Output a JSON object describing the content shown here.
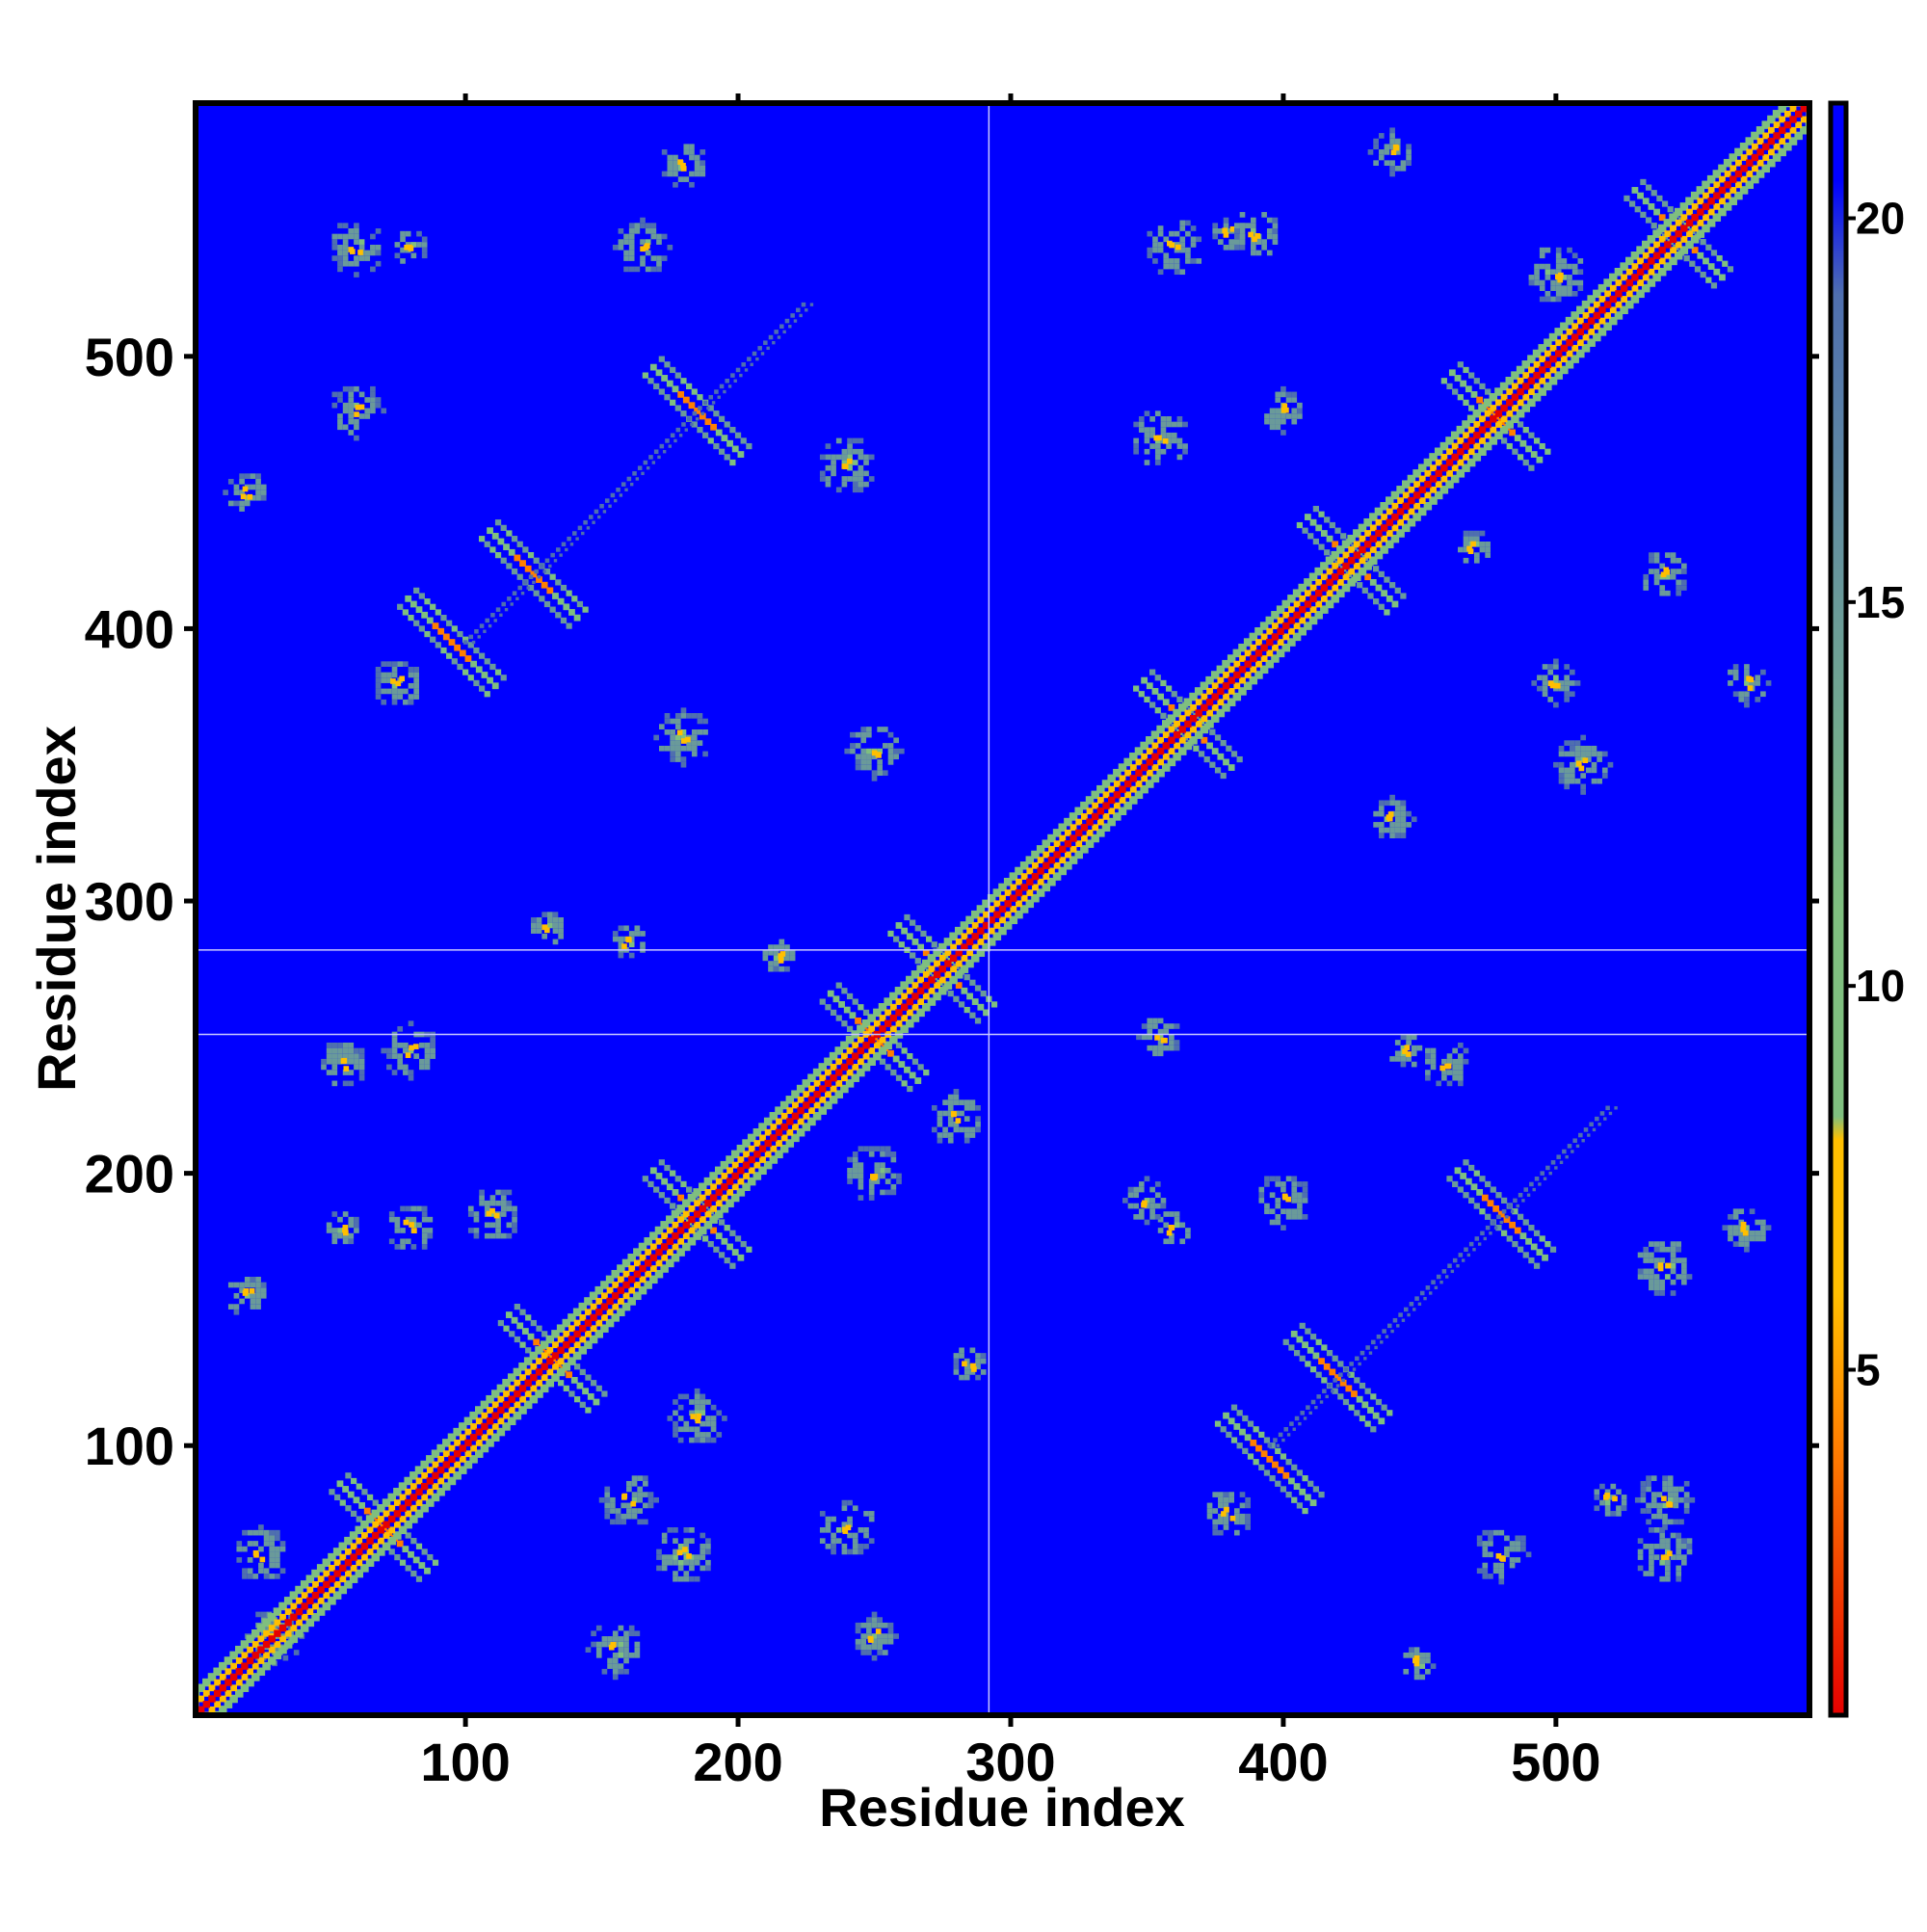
{
  "chart_data": {
    "type": "heatmap",
    "title": "",
    "xlabel": "Residue index",
    "ylabel": "Residue index",
    "xlim": [
      1,
      593
    ],
    "ylim": [
      1,
      593
    ],
    "x_ticks": [
      100,
      200,
      300,
      400,
      500
    ],
    "y_ticks": [
      100,
      200,
      300,
      400,
      500
    ],
    "colorbar": {
      "range": [
        0.5,
        21.5
      ],
      "ticks": [
        5,
        10,
        15,
        20
      ],
      "colors": [
        "#e60000",
        "#ff7f00",
        "#ffbf00",
        "#7fbf7f",
        "#6a9a9a",
        "#4f6faf",
        "#0000ff"
      ]
    },
    "background_color": "#0000ff",
    "series": [
      {
        "value": 3,
        "x": [
          [
            1,
            593
          ]
        ],
        "y": "diagonal"
      }
    ],
    "features": {
      "diagonal": {
        "from": 1,
        "to": 593
      },
      "antiparallel_crosses": [
        {
          "x": 70,
          "y": 70
        },
        {
          "x": 132,
          "y": 132
        },
        {
          "x": 185,
          "y": 185
        },
        {
          "x": 250,
          "y": 250
        },
        {
          "x": 275,
          "y": 275
        },
        {
          "x": 365,
          "y": 365
        },
        {
          "x": 425,
          "y": 425
        },
        {
          "x": 478,
          "y": 478
        },
        {
          "x": 545,
          "y": 545
        },
        {
          "x": 125,
          "y": 420
        },
        {
          "x": 185,
          "y": 480
        },
        {
          "x": 420,
          "y": 125
        },
        {
          "x": 480,
          "y": 185
        },
        {
          "x": 95,
          "y": 395
        },
        {
          "x": 395,
          "y": 95
        }
      ],
      "parallel_stripes": [
        {
          "x_from": 100,
          "y_from": 395,
          "x_to": 225,
          "y_to": 520
        },
        {
          "x_from": 395,
          "y_from": 100,
          "x_to": 520,
          "y_to": 225
        }
      ],
      "clusters": [
        {
          "x": 30,
          "y": 30
        },
        {
          "x": 55,
          "y": 180
        },
        {
          "x": 80,
          "y": 180
        },
        {
          "x": 110,
          "y": 185
        },
        {
          "x": 55,
          "y": 240
        },
        {
          "x": 80,
          "y": 245
        },
        {
          "x": 130,
          "y": 290
        },
        {
          "x": 160,
          "y": 285
        },
        {
          "x": 215,
          "y": 280
        },
        {
          "x": 250,
          "y": 200
        },
        {
          "x": 280,
          "y": 220
        },
        {
          "x": 285,
          "y": 130
        },
        {
          "x": 180,
          "y": 60
        },
        {
          "x": 240,
          "y": 70
        },
        {
          "x": 250,
          "y": 30
        },
        {
          "x": 155,
          "y": 25
        },
        {
          "x": 20,
          "y": 155
        },
        {
          "x": 25,
          "y": 60
        },
        {
          "x": 185,
          "y": 110
        },
        {
          "x": 160,
          "y": 80
        },
        {
          "x": 60,
          "y": 540
        },
        {
          "x": 80,
          "y": 540
        },
        {
          "x": 165,
          "y": 540
        },
        {
          "x": 180,
          "y": 570
        },
        {
          "x": 60,
          "y": 480
        },
        {
          "x": 240,
          "y": 460
        },
        {
          "x": 75,
          "y": 380
        },
        {
          "x": 180,
          "y": 360
        },
        {
          "x": 250,
          "y": 355
        },
        {
          "x": 20,
          "y": 450
        },
        {
          "x": 540,
          "y": 60
        },
        {
          "x": 540,
          "y": 80
        },
        {
          "x": 540,
          "y": 165
        },
        {
          "x": 570,
          "y": 180
        },
        {
          "x": 480,
          "y": 60
        },
        {
          "x": 460,
          "y": 240
        },
        {
          "x": 380,
          "y": 75
        },
        {
          "x": 360,
          "y": 180
        },
        {
          "x": 355,
          "y": 250
        },
        {
          "x": 450,
          "y": 20
        },
        {
          "x": 445,
          "y": 245
        },
        {
          "x": 360,
          "y": 540
        },
        {
          "x": 380,
          "y": 545
        },
        {
          "x": 440,
          "y": 575
        },
        {
          "x": 400,
          "y": 480
        },
        {
          "x": 355,
          "y": 470
        },
        {
          "x": 500,
          "y": 380
        },
        {
          "x": 540,
          "y": 420
        },
        {
          "x": 570,
          "y": 380
        },
        {
          "x": 510,
          "y": 350
        },
        {
          "x": 440,
          "y": 330
        },
        {
          "x": 470,
          "y": 430
        },
        {
          "x": 390,
          "y": 545
        },
        {
          "x": 350,
          "y": 190
        },
        {
          "x": 400,
          "y": 190
        },
        {
          "x": 520,
          "y": 80
        },
        {
          "x": 500,
          "y": 530
        }
      ],
      "gap_lines_x": [
        292
      ],
      "gap_lines_y": [
        251,
        282
      ]
    }
  }
}
